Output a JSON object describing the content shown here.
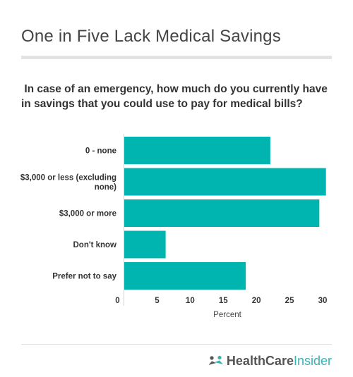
{
  "header": {
    "title": "One in Five Lack Medical Savings",
    "subtitle": " In case of an emergency, how much do you currently have in savings that you could use to pay for medical bills?"
  },
  "chart_data": {
    "type": "bar",
    "orientation": "horizontal",
    "categories": [
      [
        "0 - none"
      ],
      [
        "$3,000 or less (excluding",
        "none)"
      ],
      [
        "$3,000 or more"
      ],
      [
        "Don't know"
      ],
      [
        "Prefer not to say"
      ]
    ],
    "values": [
      22.1,
      30.5,
      29.5,
      6.3,
      18.4
    ],
    "xlabel": "Percent",
    "xlim": [
      0,
      30
    ],
    "xticks": [
      0,
      5,
      10,
      15,
      20,
      25,
      30
    ],
    "bar_color": "#00b5b0",
    "grid": false
  },
  "footer": {
    "logo_part1": "HealthCare",
    "logo_part2": "Insider",
    "logo_color": "#3ab2b2"
  }
}
